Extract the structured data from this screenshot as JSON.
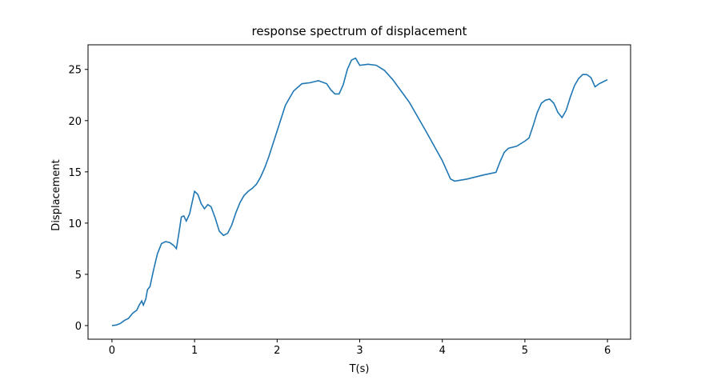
{
  "chart_data": {
    "type": "line",
    "title": "response spectrum of displacement",
    "xlabel": "T(s)",
    "ylabel": "Displacement",
    "xlim": [
      -0.29,
      6.28
    ],
    "ylim": [
      -1.33,
      27.4
    ],
    "xticks": [
      0,
      1,
      2,
      3,
      4,
      5,
      6
    ],
    "yticks": [
      0,
      5,
      10,
      15,
      20,
      25
    ],
    "series": [
      {
        "color": "#1f77b4",
        "x": [
          0,
          0.05,
          0.1,
          0.15,
          0.2,
          0.25,
          0.3,
          0.33,
          0.36,
          0.38,
          0.41,
          0.43,
          0.46,
          0.5,
          0.55,
          0.6,
          0.65,
          0.7,
          0.75,
          0.78,
          0.81,
          0.84,
          0.87,
          0.9,
          0.94,
          0.97,
          1.0,
          1.04,
          1.08,
          1.12,
          1.16,
          1.2,
          1.25,
          1.3,
          1.35,
          1.4,
          1.45,
          1.5,
          1.55,
          1.6,
          1.65,
          1.7,
          1.75,
          1.8,
          1.85,
          1.9,
          2.0,
          2.1,
          2.2,
          2.3,
          2.4,
          2.5,
          2.6,
          2.65,
          2.7,
          2.75,
          2.8,
          2.85,
          2.9,
          2.95,
          3.0,
          3.1,
          3.2,
          3.3,
          3.4,
          3.6,
          3.8,
          4.0,
          4.1,
          4.15,
          4.3,
          4.5,
          4.65,
          4.7,
          4.75,
          4.8,
          4.9,
          5.0,
          5.05,
          5.1,
          5.15,
          5.2,
          5.25,
          5.3,
          5.35,
          5.4,
          5.45,
          5.5,
          5.55,
          5.6,
          5.65,
          5.7,
          5.75,
          5.8,
          5.85,
          5.9,
          5.95,
          6.0
        ],
        "values": [
          0,
          0.05,
          0.2,
          0.5,
          0.7,
          1.2,
          1.5,
          2.0,
          2.4,
          2.0,
          2.6,
          3.5,
          3.8,
          5.3,
          7.0,
          8.0,
          8.2,
          8.1,
          7.8,
          7.5,
          9.0,
          10.6,
          10.7,
          10.2,
          10.9,
          12.0,
          13.1,
          12.8,
          11.9,
          11.4,
          11.8,
          11.6,
          10.5,
          9.2,
          8.8,
          9.0,
          9.8,
          11.0,
          12.0,
          12.7,
          13.1,
          13.4,
          13.8,
          14.5,
          15.4,
          16.5,
          19.0,
          21.5,
          22.9,
          23.6,
          23.7,
          23.9,
          23.6,
          23.0,
          22.6,
          22.6,
          23.5,
          25.0,
          25.9,
          26.1,
          25.4,
          25.5,
          25.4,
          24.9,
          24.0,
          21.8,
          19.0,
          16.1,
          14.3,
          14.1,
          14.3,
          14.7,
          14.95,
          16.0,
          16.9,
          17.3,
          17.5,
          18.0,
          18.3,
          19.5,
          20.8,
          21.7,
          22.0,
          22.1,
          21.7,
          20.8,
          20.3,
          21.0,
          22.3,
          23.4,
          24.1,
          24.5,
          24.5,
          24.2,
          23.3,
          23.6,
          23.8,
          24.0
        ]
      }
    ]
  }
}
